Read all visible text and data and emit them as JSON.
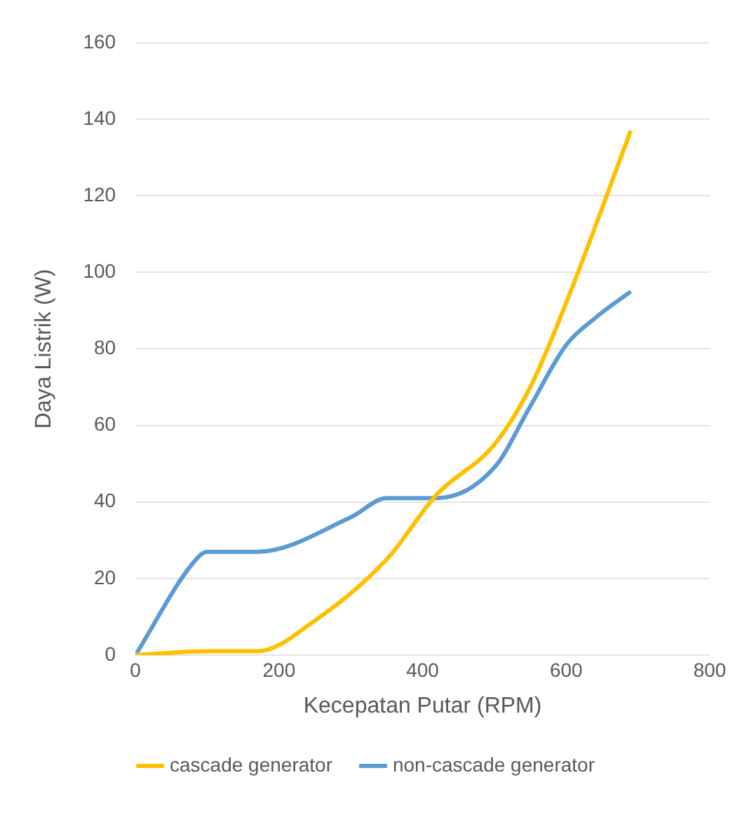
{
  "chart_data": {
    "type": "line",
    "xlabel": "Kecepatan Putar (RPM)",
    "ylabel": "Daya Listrik (W)",
    "xlim": [
      0,
      800
    ],
    "xticks": [
      0,
      200,
      400,
      600,
      800
    ],
    "ylim": [
      0,
      160
    ],
    "yticks": [
      0,
      20,
      40,
      60,
      80,
      100,
      120,
      140,
      160
    ],
    "grid": "y",
    "legend": "bottom",
    "marker": "none",
    "line_style": "solid",
    "series": [
      {
        "name": "cascade generator",
        "color": "#ffc000",
        "x": [
          0,
          100,
          170,
          250,
          350,
          420,
          500,
          550,
          600,
          690
        ],
        "values": [
          0,
          1,
          1,
          9,
          25,
          42,
          55,
          70,
          92,
          137
        ]
      },
      {
        "name": "non-cascade generator",
        "color": "#5b9bd5",
        "x": [
          0,
          80,
          100,
          170,
          300,
          350,
          420,
          500,
          550,
          600,
          640,
          690
        ],
        "values": [
          0,
          24,
          27,
          27,
          36,
          41,
          41,
          49,
          65,
          81,
          88,
          95
        ]
      }
    ]
  }
}
